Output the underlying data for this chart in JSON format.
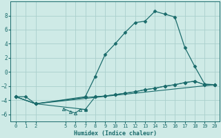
{
  "xlabel": "Humidex (Indice chaleur)",
  "bg_color": "#ceeae6",
  "grid_color": "#aacfcc",
  "line_color": "#1a6b6b",
  "xlim": [
    -0.5,
    20.5
  ],
  "ylim": [
    -7,
    10
  ],
  "yticks": [
    -6,
    -4,
    -2,
    0,
    2,
    4,
    6,
    8
  ],
  "xticks": [
    0,
    1,
    2,
    5,
    6,
    7,
    8,
    9,
    10,
    11,
    12,
    13,
    14,
    15,
    16,
    17,
    18,
    19,
    20
  ],
  "line1_x": [
    0,
    1,
    2,
    7,
    8,
    9,
    10,
    11,
    12,
    13,
    14,
    15,
    16,
    17,
    18,
    19,
    20
  ],
  "line1_y": [
    -3.5,
    -3.5,
    -4.5,
    -3.5,
    -0.6,
    2.5,
    4.0,
    5.6,
    7.0,
    7.2,
    8.6,
    8.2,
    7.8,
    3.5,
    0.8,
    -1.7,
    -1.8
  ],
  "line2_x": [
    0,
    2,
    7,
    8,
    9,
    10,
    11,
    12,
    13,
    14,
    15,
    16,
    17,
    18,
    19,
    20
  ],
  "line2_y": [
    -3.5,
    -4.5,
    -3.6,
    -3.5,
    -3.4,
    -3.2,
    -3.0,
    -2.8,
    -2.5,
    -2.3,
    -2.0,
    -1.8,
    -1.5,
    -1.3,
    -1.8,
    -1.8
  ],
  "line3_x": [
    0,
    2,
    7,
    8,
    9,
    10,
    11,
    12,
    13,
    14,
    15,
    16,
    17,
    18,
    19,
    20
  ],
  "line3_y": [
    -3.5,
    -4.5,
    -5.3,
    -3.5,
    -3.4,
    -3.2,
    -3.0,
    -2.8,
    -2.5,
    -2.3,
    -2.0,
    -1.8,
    -1.5,
    -1.3,
    -1.8,
    -1.8
  ],
  "line4_x": [
    4.8,
    5.5,
    6.0,
    6.5,
    7.0
  ],
  "line4_y": [
    -5.2,
    -5.6,
    -5.8,
    -5.3,
    -5.3
  ],
  "line5_x": [
    0,
    2,
    20
  ],
  "line5_y": [
    -3.5,
    -4.5,
    -1.8
  ]
}
